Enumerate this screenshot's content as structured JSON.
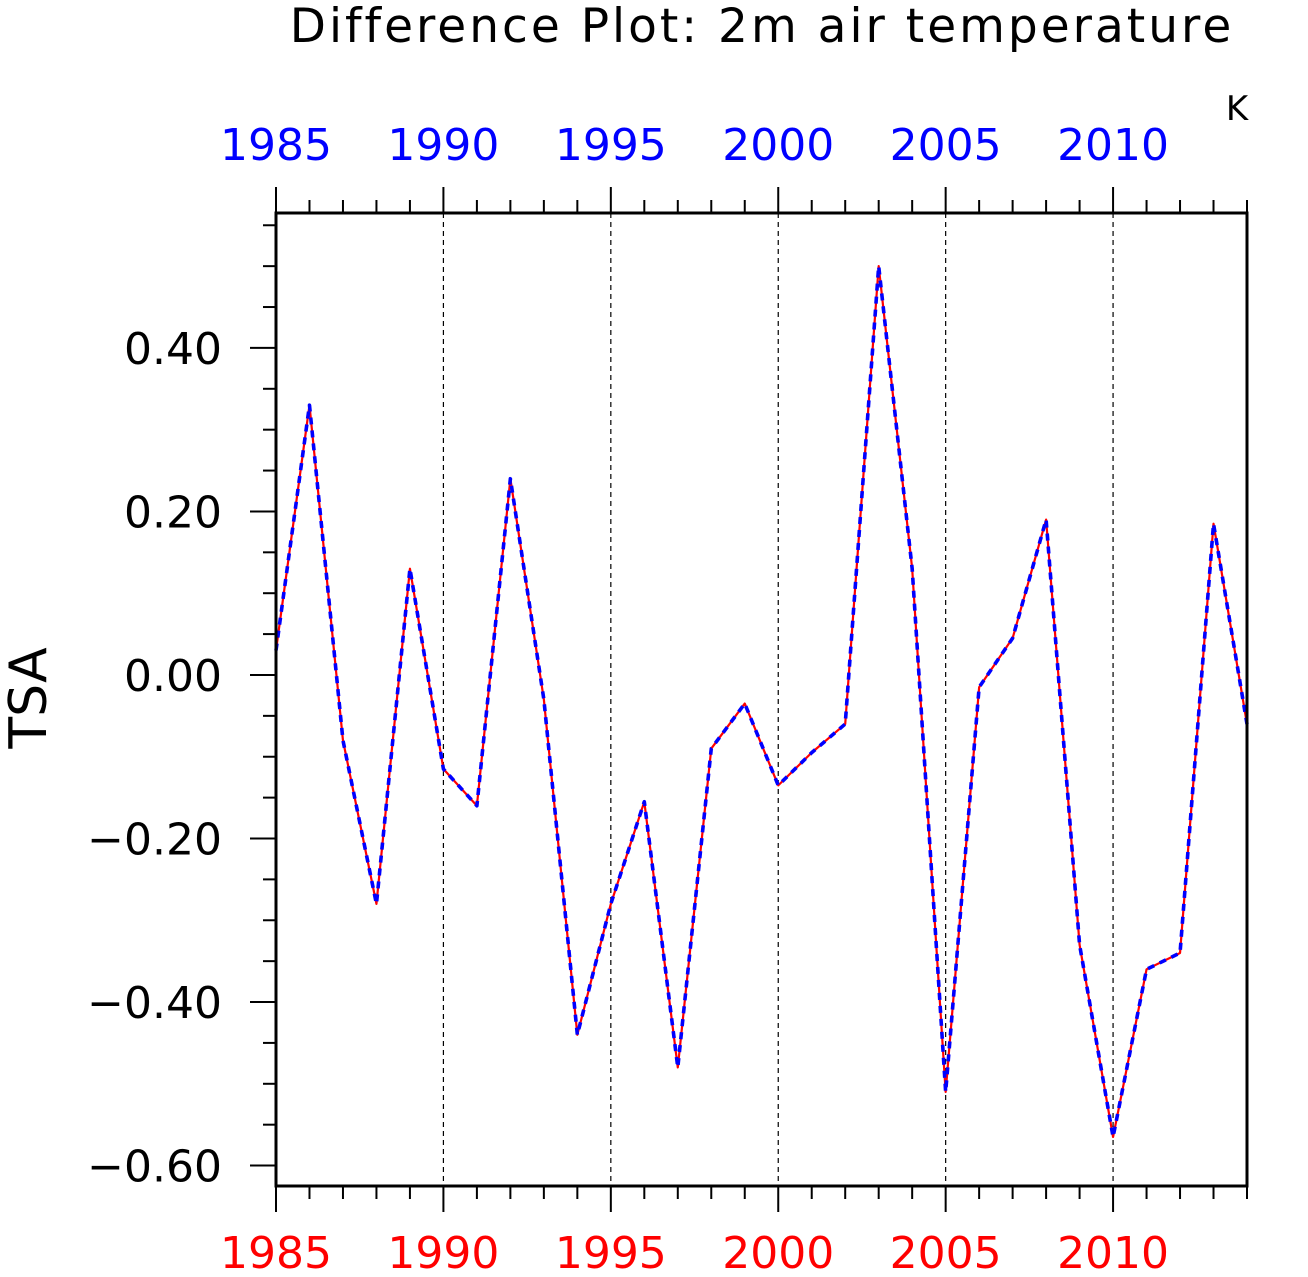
{
  "chart_data": {
    "type": "line",
    "title": "Difference Plot: 2m air temperature",
    "units_label": "K",
    "ylabel": "TSA",
    "xlabel": "",
    "x": [
      1985,
      1986,
      1987,
      1988,
      1989,
      1990,
      1991,
      1992,
      1993,
      1994,
      1995,
      1996,
      1997,
      1998,
      1999,
      2000,
      2001,
      2002,
      2003,
      2004,
      2005,
      2006,
      2007,
      2008,
      2009,
      2010,
      2011,
      2012,
      2013,
      2014
    ],
    "series": [
      {
        "color": "#ff0000",
        "style": "solid",
        "values": [
          0.03,
          0.33,
          -0.08,
          -0.28,
          0.13,
          -0.115,
          -0.16,
          0.24,
          -0.03,
          -0.44,
          -0.28,
          -0.155,
          -0.48,
          -0.09,
          -0.035,
          -0.135,
          -0.095,
          -0.06,
          0.5,
          0.13,
          -0.51,
          -0.015,
          0.045,
          0.19,
          -0.33,
          -0.565,
          -0.36,
          -0.34,
          0.185,
          -0.06
        ]
      },
      {
        "color": "#0000ff",
        "style": "dashed",
        "values": [
          0.03,
          0.33,
          -0.08,
          -0.28,
          0.13,
          -0.115,
          -0.16,
          0.24,
          -0.03,
          -0.44,
          -0.28,
          -0.155,
          -0.48,
          -0.09,
          -0.035,
          -0.135,
          -0.095,
          -0.06,
          0.5,
          0.13,
          -0.51,
          -0.015,
          0.045,
          0.19,
          -0.33,
          -0.565,
          -0.36,
          -0.34,
          0.185,
          -0.06
        ]
      }
    ],
    "xlim": [
      1985,
      2014
    ],
    "ylim": [
      -0.625,
      0.565
    ],
    "x_ticks": [
      "1985",
      "1990",
      "1995",
      "2000",
      "2005",
      "2010"
    ],
    "x_tick_values": [
      1985,
      1990,
      1995,
      2000,
      2005,
      2010
    ],
    "y_ticks": [
      "0.40",
      "0.20",
      "0.00",
      "−0.20",
      "−0.40",
      "−0.60"
    ],
    "y_tick_values": [
      0.4,
      0.2,
      0.0,
      -0.2,
      -0.4,
      -0.6
    ],
    "top_axis_color": "#0000ff",
    "bottom_axis_color": "#ff0000",
    "grid": "vertical dashed at major x ticks"
  }
}
